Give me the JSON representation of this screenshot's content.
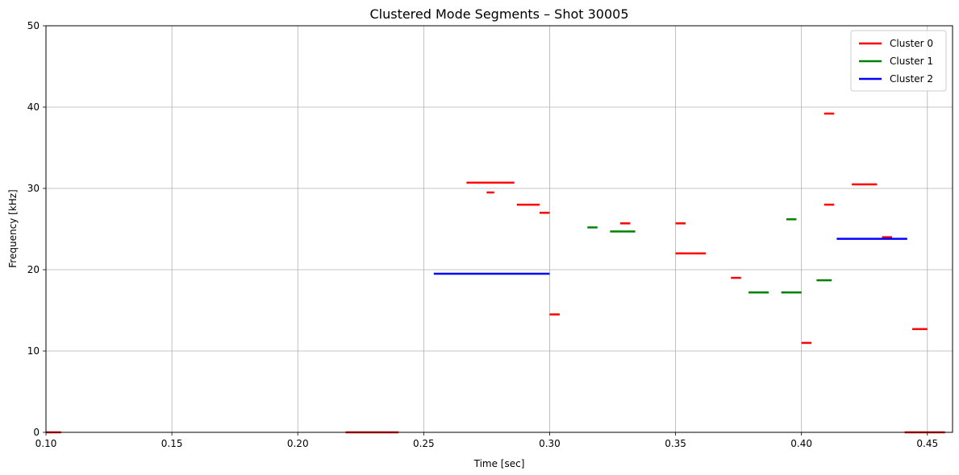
{
  "chart_data": {
    "type": "line",
    "title": "Clustered Mode Segments – Shot 30005",
    "xlabel": "Time [sec]",
    "ylabel": "Frequency [kHz]",
    "xlim": [
      0.1,
      0.46
    ],
    "ylim": [
      0,
      50
    ],
    "xticks": [
      0.1,
      0.15,
      0.2,
      0.25,
      0.3,
      0.35,
      0.4,
      0.45
    ],
    "xtick_labels": [
      "0.10",
      "0.15",
      "0.20",
      "0.25",
      "0.30",
      "0.35",
      "0.40",
      "0.45"
    ],
    "yticks": [
      0,
      10,
      20,
      30,
      40,
      50
    ],
    "ytick_labels": [
      "0",
      "10",
      "20",
      "30",
      "40",
      "50"
    ],
    "grid": true,
    "legend_position": "top-right",
    "series": [
      {
        "name": "Cluster 0",
        "color": "#ff0000",
        "segments": [
          {
            "x": [
              0.1,
              0.106
            ],
            "y": 0.0
          },
          {
            "x": [
              0.219,
              0.24
            ],
            "y": 0.0
          },
          {
            "x": [
              0.267,
              0.286
            ],
            "y": 30.7
          },
          {
            "x": [
              0.275,
              0.278
            ],
            "y": 29.5
          },
          {
            "x": [
              0.287,
              0.296
            ],
            "y": 28.0
          },
          {
            "x": [
              0.296,
              0.3
            ],
            "y": 27.0
          },
          {
            "x": [
              0.3,
              0.304
            ],
            "y": 14.5
          },
          {
            "x": [
              0.328,
              0.332
            ],
            "y": 25.7
          },
          {
            "x": [
              0.35,
              0.354
            ],
            "y": 25.7
          },
          {
            "x": [
              0.35,
              0.362
            ],
            "y": 22.0
          },
          {
            "x": [
              0.372,
              0.376
            ],
            "y": 19.0
          },
          {
            "x": [
              0.4,
              0.404
            ],
            "y": 11.0
          },
          {
            "x": [
              0.409,
              0.413
            ],
            "y": 39.2
          },
          {
            "x": [
              0.409,
              0.413
            ],
            "y": 28.0
          },
          {
            "x": [
              0.42,
              0.43
            ],
            "y": 30.5
          },
          {
            "x": [
              0.432,
              0.436
            ],
            "y": 24.0
          },
          {
            "x": [
              0.444,
              0.45
            ],
            "y": 12.7
          },
          {
            "x": [
              0.441,
              0.457
            ],
            "y": 0.0
          }
        ]
      },
      {
        "name": "Cluster 1",
        "color": "#008000",
        "segments": [
          {
            "x": [
              0.315,
              0.319
            ],
            "y": 25.2
          },
          {
            "x": [
              0.324,
              0.334
            ],
            "y": 24.7
          },
          {
            "x": [
              0.379,
              0.387
            ],
            "y": 17.2
          },
          {
            "x": [
              0.392,
              0.4
            ],
            "y": 17.2
          },
          {
            "x": [
              0.394,
              0.398
            ],
            "y": 26.2
          },
          {
            "x": [
              0.406,
              0.412
            ],
            "y": 18.7
          }
        ]
      },
      {
        "name": "Cluster 2",
        "color": "#0000ff",
        "segments": [
          {
            "x": [
              0.254,
              0.3
            ],
            "y": 19.5
          },
          {
            "x": [
              0.414,
              0.442
            ],
            "y": 23.8
          }
        ]
      }
    ]
  }
}
